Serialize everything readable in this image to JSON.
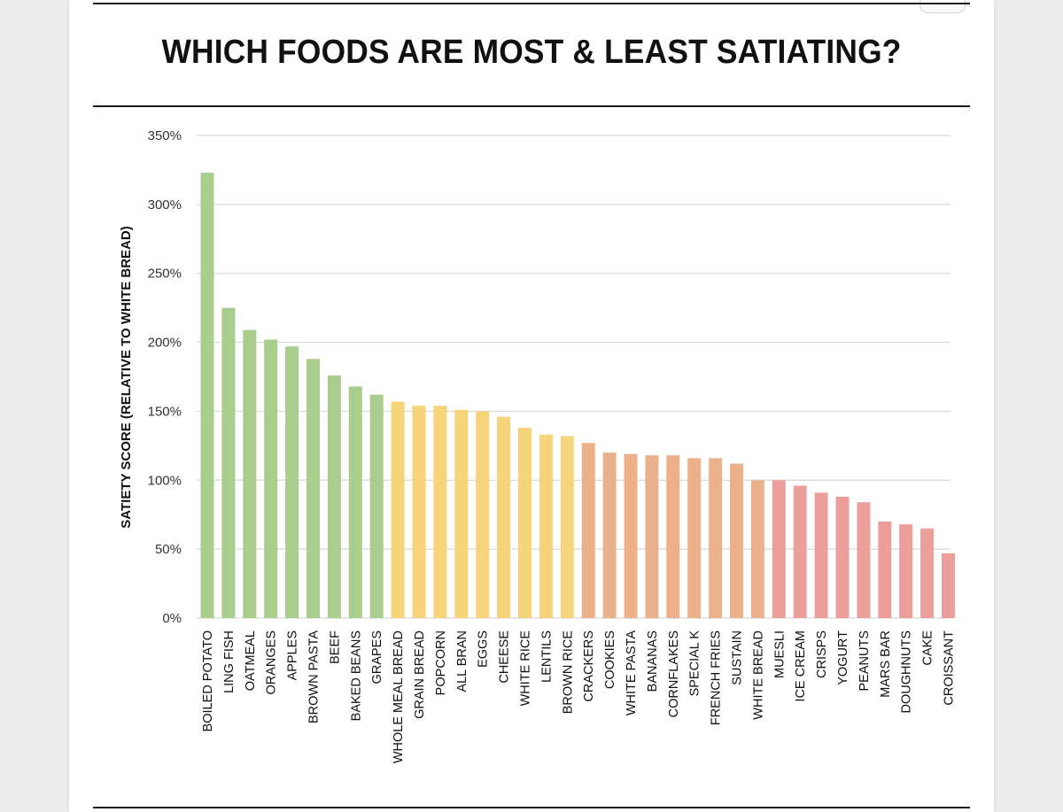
{
  "chart_data": {
    "type": "bar",
    "title": "WHICH FOODS ARE MOST & LEAST SATIATING?",
    "ylabel": "SATIETY SCORE (RELATIVE TO WHITE BREAD)",
    "xlabel": "",
    "ylim": [
      0,
      350
    ],
    "yticks": [
      0,
      50,
      100,
      150,
      200,
      250,
      300,
      350
    ],
    "ytick_labels": [
      "0%",
      "50%",
      "100%",
      "150%",
      "200%",
      "250%",
      "300%",
      "350%"
    ],
    "grid": true,
    "categories": [
      "BOILED POTATO",
      "LING FISH",
      "OATMEAL",
      "ORANGES",
      "APPLES",
      "BROWN PASTA",
      "BEEF",
      "BAKED BEANS",
      "GRAPES",
      "WHOLE MEAL BREAD",
      "GRAIN BREAD",
      "POPCORN",
      "ALL BRAN",
      "EGGS",
      "CHEESE",
      "WHITE RICE",
      "LENTILS",
      "BROWN RICE",
      "CRACKERS",
      "COOKIES",
      "WHITE PASTA",
      "BANANAS",
      "CORNFLAKES",
      "SPECIAL K",
      "FRENCH FRIES",
      "SUSTAIN",
      "WHITE BREAD",
      "MUESLI",
      "ICE CREAM",
      "CRISPS",
      "YOGURT",
      "PEANUTS",
      "MARS BAR",
      "DOUGHNUTS",
      "CAKE",
      "CROISSANT"
    ],
    "values": [
      323,
      225,
      209,
      202,
      197,
      188,
      176,
      168,
      162,
      157,
      154,
      154,
      151,
      150,
      146,
      138,
      133,
      132,
      127,
      120,
      119,
      118,
      118,
      116,
      116,
      112,
      100,
      100,
      96,
      91,
      88,
      84,
      70,
      68,
      65,
      47
    ],
    "colors": [
      "#a9cd8c",
      "#a9cd8c",
      "#a9cd8c",
      "#a9cd8c",
      "#a9cd8c",
      "#a9cd8c",
      "#a9cd8c",
      "#a9cd8c",
      "#a9cd8c",
      "#f5d47a",
      "#f5d47a",
      "#f5d47a",
      "#f5d47a",
      "#f5d47a",
      "#f5d47a",
      "#f5d47a",
      "#f5d47a",
      "#f5d47a",
      "#ecb08a",
      "#ecb08a",
      "#ecb08a",
      "#ecb08a",
      "#ecb08a",
      "#ecb08a",
      "#ecb08a",
      "#ecb08a",
      "#ecb08a",
      "#ec9e9b",
      "#ec9e9b",
      "#ec9e9b",
      "#ec9e9b",
      "#ec9e9b",
      "#ec9e9b",
      "#ec9e9b",
      "#ec9e9b",
      "#ec9e9b"
    ]
  }
}
